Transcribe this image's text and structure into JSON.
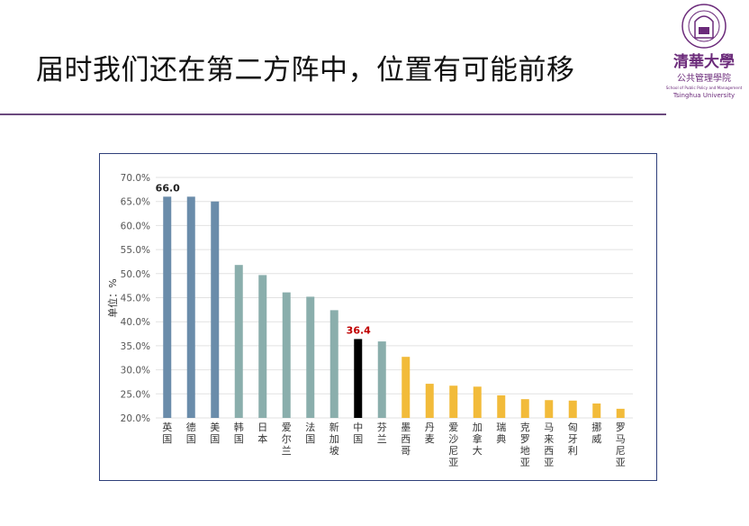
{
  "slide": {
    "title": "届时我们还在第二方阵中，位置有可能前移"
  },
  "logo": {
    "name": "清華大學 公共管理學院",
    "subtitle": "School of Public Policy and Management",
    "university": "Tsinghua University"
  },
  "chart_data": {
    "type": "bar",
    "ylabel": "单位：%",
    "ylim": [
      20,
      70
    ],
    "yticks": [
      "20.0%",
      "25.0%",
      "30.0%",
      "35.0%",
      "40.0%",
      "45.0%",
      "50.0%",
      "55.0%",
      "60.0%",
      "65.0%",
      "70.0%"
    ],
    "grid": true,
    "categories": [
      "英国",
      "德国",
      "美国",
      "韩国",
      "日本",
      "爱尔兰",
      "法国",
      "新加坡",
      "中国",
      "芬兰",
      "墨西哥",
      "丹麦",
      "爱沙尼亚",
      "加拿大",
      "瑞典",
      "克罗地亚",
      "马来西亚",
      "匈牙利",
      "挪威",
      "罗马尼亚"
    ],
    "values": [
      66.0,
      66.0,
      65.0,
      51.8,
      49.7,
      46.1,
      45.2,
      42.4,
      36.4,
      35.9,
      32.7,
      27.1,
      26.7,
      26.5,
      24.7,
      23.9,
      23.7,
      23.6,
      23.0,
      21.9
    ],
    "colors": [
      "#6a8caa",
      "#6a8caa",
      "#6a8caa",
      "#8aaeac",
      "#8aaeac",
      "#8aaeac",
      "#8aaeac",
      "#8aaeac",
      "#000000",
      "#8aaeac",
      "#f2bb3a",
      "#f2bb3a",
      "#f2bb3a",
      "#f2bb3a",
      "#f2bb3a",
      "#f2bb3a",
      "#f2bb3a",
      "#f2bb3a",
      "#f2bb3a",
      "#f2bb3a"
    ],
    "data_labels": [
      {
        "index": 0,
        "text": "66.0",
        "color": "#222222"
      },
      {
        "index": 8,
        "text": "36.4",
        "color": "#c00000"
      }
    ]
  }
}
